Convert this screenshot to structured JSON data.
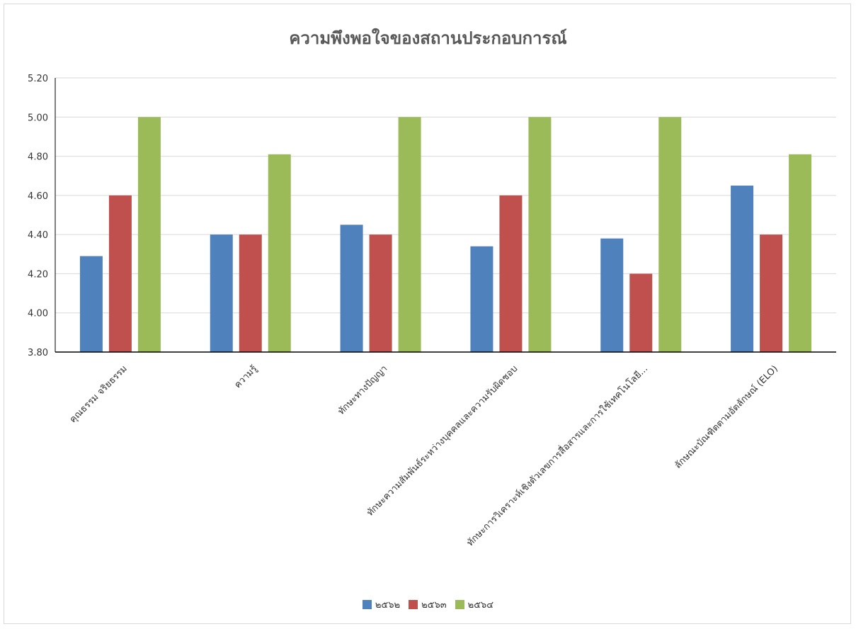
{
  "chart_data": {
    "type": "bar",
    "title": "ความพึงพอใจของสถานประกอบการณ์",
    "categories": [
      "คุณธรรม จริยธรรม",
      "ความรู้",
      "ทักษะทางปัญญา",
      "ทักษะความสัมพันธ์ระหว่างบุคคลและความรับผิดชอบ",
      "ทักษะการวิเคราะห์เชิงตัวเลขการสื่อสารและการใช้เทคโนโลยี...",
      "ลักษณะบัณฑิตตามอัตลักษณ์ (ELO)"
    ],
    "series": [
      {
        "name": "๒๕๖๒",
        "color": "#4f81bd",
        "values": [
          4.29,
          4.4,
          4.45,
          4.34,
          4.38,
          4.65
        ]
      },
      {
        "name": "๒๕๖๓",
        "color": "#c0504d",
        "values": [
          4.6,
          4.4,
          4.4,
          4.6,
          4.2,
          4.4
        ]
      },
      {
        "name": "๒๕๖๔",
        "color": "#9bbb59",
        "values": [
          5.0,
          4.81,
          5.0,
          5.0,
          5.0,
          4.81
        ]
      }
    ],
    "ylim": [
      3.8,
      5.2
    ],
    "yticks": [
      "3.80",
      "4.00",
      "4.20",
      "4.40",
      "4.60",
      "4.80",
      "5.00",
      "5.20"
    ],
    "grid": true,
    "legend_position": "bottom"
  }
}
